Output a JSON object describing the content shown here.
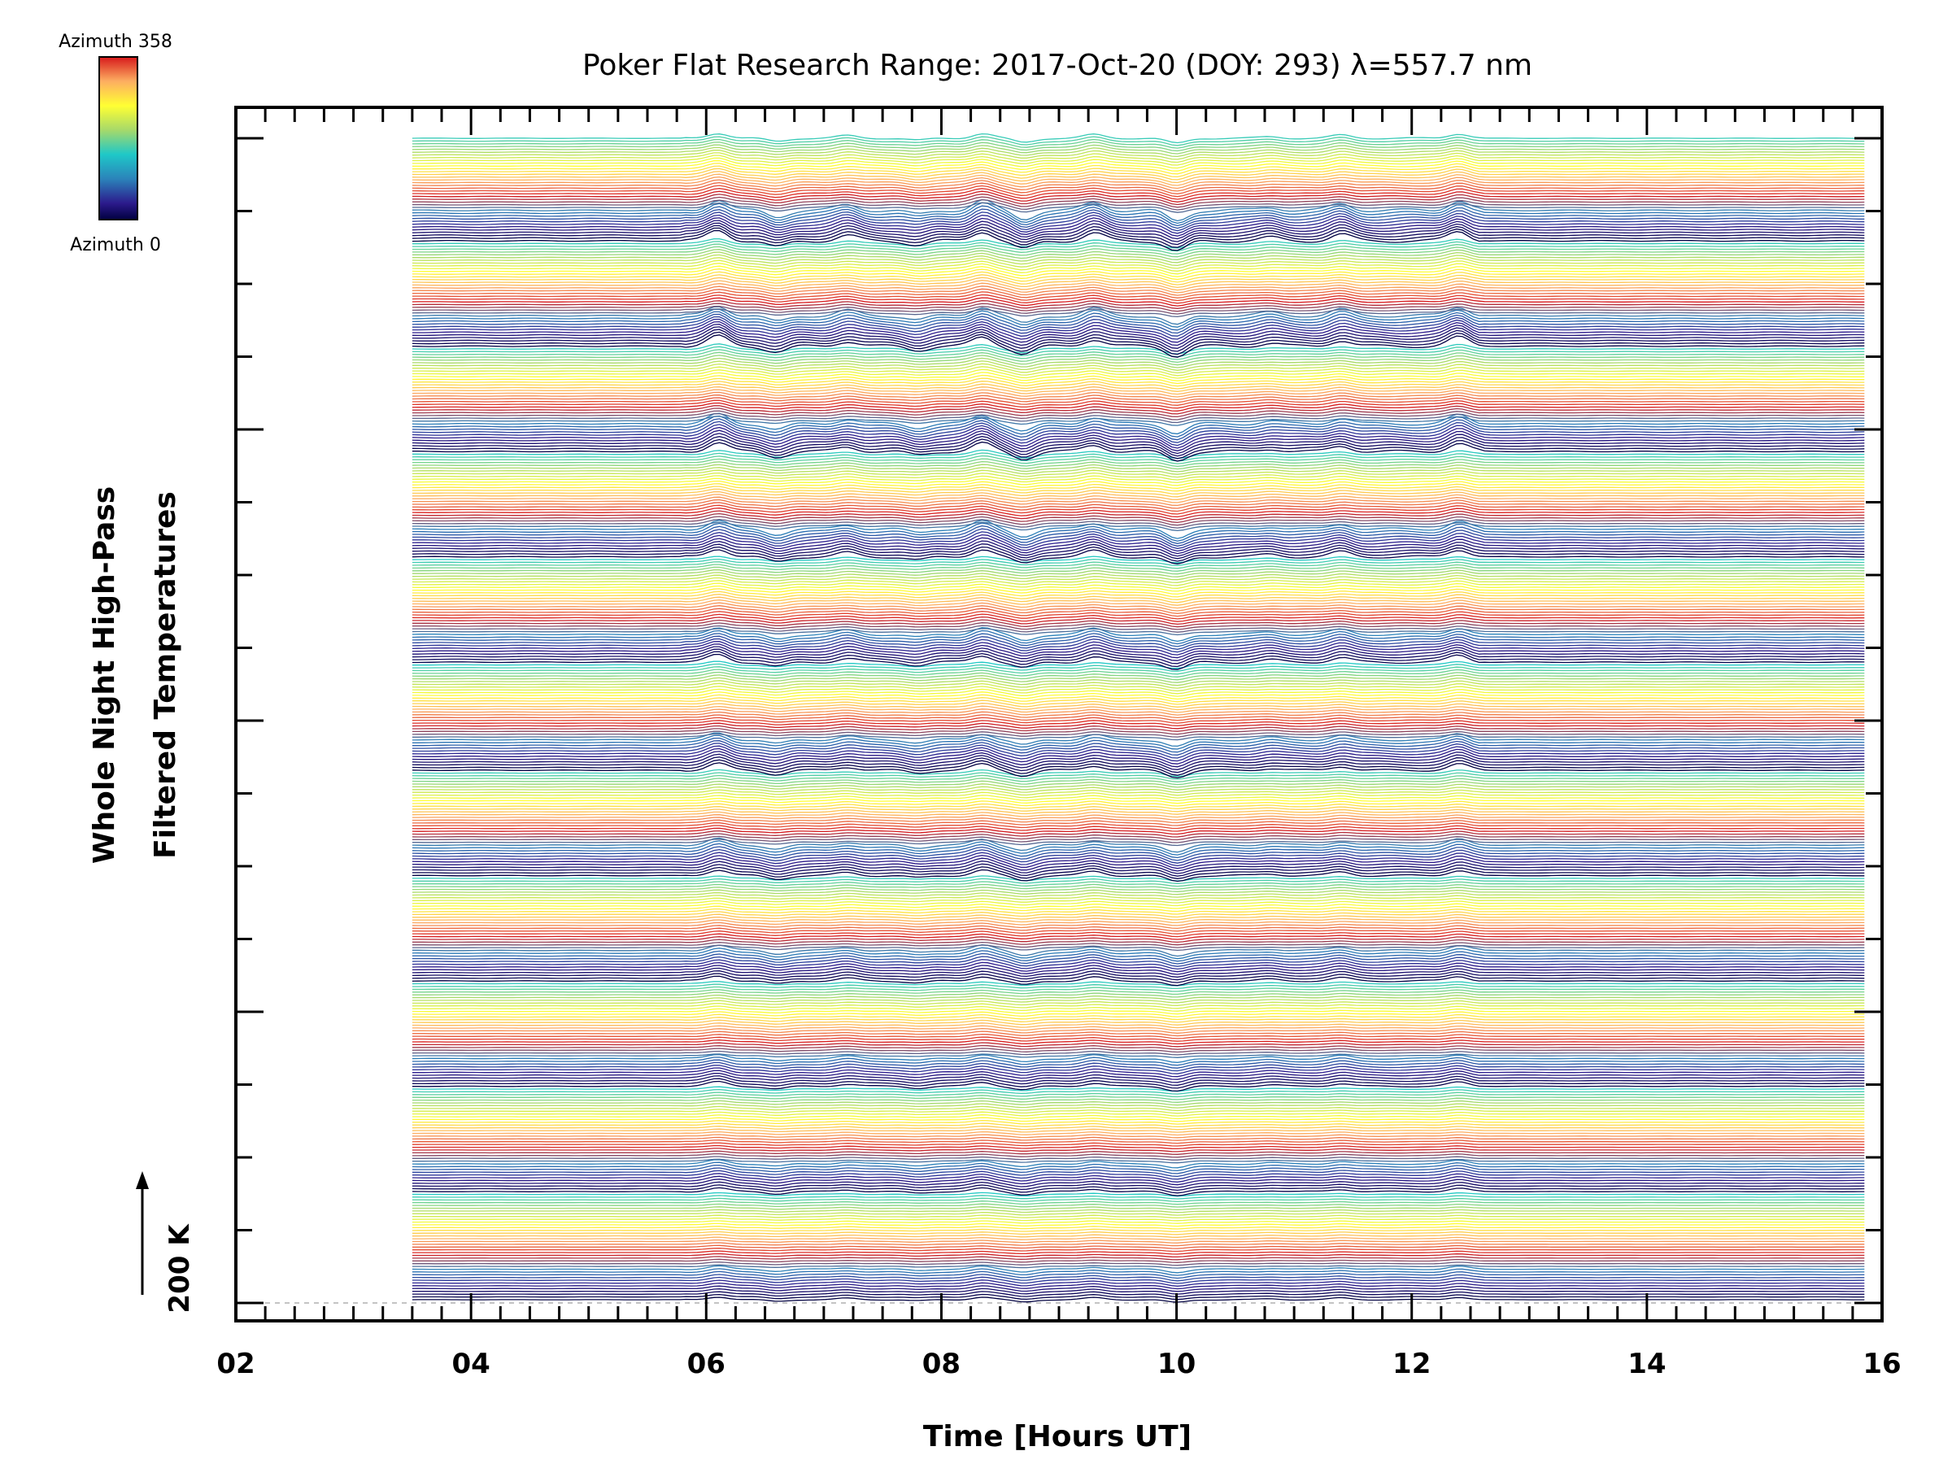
{
  "chart_data": {
    "type": "line",
    "title": "Poker Flat Research Range: 2017-Oct-20 (DOY: 293) λ=557.7 nm",
    "xlabel": "Time [Hours UT]",
    "ylabel_line1": "Whole Night High-Pass",
    "ylabel_line2": "Filtered Temperatures",
    "xlim": [
      2,
      16
    ],
    "x_tick_labels": [
      "02",
      "04",
      "06",
      "08",
      "10",
      "12",
      "14",
      "16"
    ],
    "x_minor_tick_step_hours": 0.25,
    "data_start_hour": 3.5,
    "data_end_hour": 15.85,
    "scale_bar": {
      "label": "200 K",
      "value_kelvin": 200
    },
    "colorbar": {
      "top_label": "Azimuth 358",
      "bottom_label": "Azimuth 0",
      "colors": [
        "#d7191c",
        "#fdae61",
        "#ffff33",
        "#a6d96a",
        "#1ec8c8",
        "#2b83ba",
        "#2c1a8c",
        "#000040"
      ]
    },
    "azimuth_range_deg": [
      0,
      358
    ],
    "traces_per_group": 120,
    "groups": 11,
    "features": [
      {
        "hour": 6.1,
        "amplitude": 1.0
      },
      {
        "hour": 6.6,
        "amplitude": -0.6
      },
      {
        "hour": 7.2,
        "amplitude": 0.5
      },
      {
        "hour": 7.8,
        "amplitude": -0.4
      },
      {
        "hour": 8.35,
        "amplitude": 0.9
      },
      {
        "hour": 8.7,
        "amplitude": -0.8
      },
      {
        "hour": 9.3,
        "amplitude": 0.7
      },
      {
        "hour": 10.0,
        "amplitude": -1.0
      },
      {
        "hour": 10.8,
        "amplitude": 0.3
      },
      {
        "hour": 11.4,
        "amplitude": 0.6
      },
      {
        "hour": 12.4,
        "amplitude": 0.9
      }
    ]
  }
}
